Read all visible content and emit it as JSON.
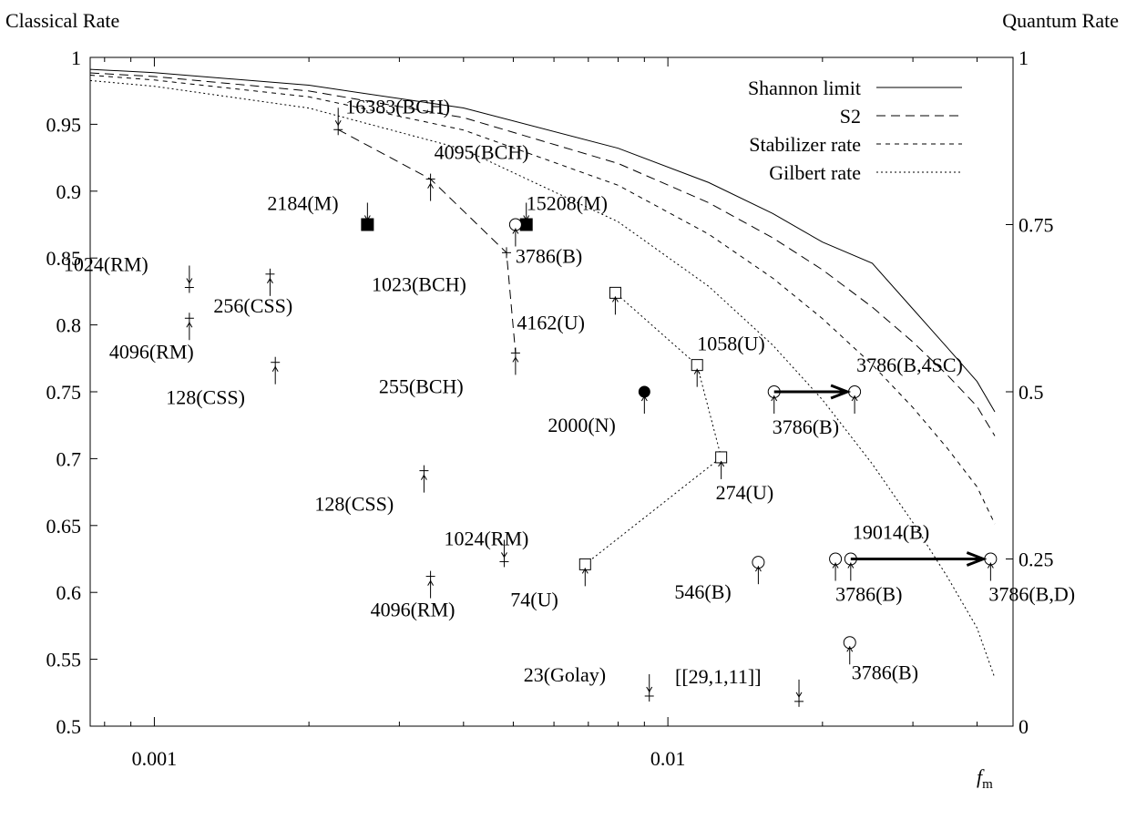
{
  "chart_data": {
    "type": "scatter",
    "y_left_label": "Classical Rate",
    "y_right_label": "Quantum Rate",
    "x_label_main": "f",
    "x_label_sub": "m",
    "x_scale": "log",
    "xlim": [
      0.00075,
      0.047
    ],
    "ylim": [
      0.5,
      1.0
    ],
    "x_tick_labels": [
      {
        "x": 0.001,
        "label": "0.001"
      },
      {
        "x": 0.01,
        "label": "0.01"
      }
    ],
    "y_left_ticks": [
      {
        "y": 0.5,
        "label": "0.5"
      },
      {
        "y": 0.55,
        "label": "0.55"
      },
      {
        "y": 0.6,
        "label": "0.6"
      },
      {
        "y": 0.65,
        "label": "0.65"
      },
      {
        "y": 0.7,
        "label": "0.7"
      },
      {
        "y": 0.75,
        "label": "0.75"
      },
      {
        "y": 0.8,
        "label": "0.8"
      },
      {
        "y": 0.85,
        "label": "0.85"
      },
      {
        "y": 0.9,
        "label": "0.9"
      },
      {
        "y": 0.95,
        "label": "0.95"
      },
      {
        "y": 1.0,
        "label": "1"
      }
    ],
    "y_right_ticks": [
      {
        "y": 0.5,
        "label": "0"
      },
      {
        "y": 0.625,
        "label": "0.25"
      },
      {
        "y": 0.75,
        "label": "0.5"
      },
      {
        "y": 0.875,
        "label": "0.75"
      },
      {
        "y": 1.0,
        "label": "1"
      }
    ],
    "grid": false,
    "legend_position": "top-right",
    "series": [
      {
        "name": "Shannon limit",
        "style": "solid",
        "kind": "curve",
        "x": [
          0.00075,
          0.001,
          0.002,
          0.004,
          0.008,
          0.012,
          0.016,
          0.02,
          0.025,
          0.03,
          0.035,
          0.04,
          0.045
        ],
        "y": [
          0.9911,
          0.9886,
          0.9792,
          0.9622,
          0.9321,
          0.9065,
          0.8833,
          0.8619,
          0.8461,
          0.8119,
          0.783,
          0.7577,
          0.735
        ]
      },
      {
        "name": "S2",
        "style": "dashed",
        "kind": "curve",
        "x": [
          0.00075,
          0.001,
          0.002,
          0.004,
          0.008,
          0.012,
          0.016,
          0.02,
          0.025,
          0.03,
          0.035,
          0.04,
          0.045
        ],
        "y": [
          0.9884,
          0.9857,
          0.9749,
          0.955,
          0.9207,
          0.8914,
          0.8651,
          0.8412,
          0.8133,
          0.7872,
          0.7626,
          0.739,
          0.717
        ]
      },
      {
        "name": "Stabilizer rate",
        "style": "short-dash",
        "kind": "curve",
        "x": [
          0.00075,
          0.001,
          0.002,
          0.004,
          0.008,
          0.012,
          0.016,
          0.02,
          0.025,
          0.03,
          0.035,
          0.04,
          0.045
        ],
        "y": [
          0.9867,
          0.9831,
          0.9705,
          0.9457,
          0.9044,
          0.8679,
          0.835,
          0.8047,
          0.7703,
          0.7382,
          0.7078,
          0.6789,
          0.6512
        ]
      },
      {
        "name": "Gilbert rate",
        "style": "dotted",
        "kind": "curve",
        "x": [
          0.00075,
          0.001,
          0.002,
          0.004,
          0.008,
          0.012,
          0.016,
          0.02,
          0.025,
          0.03,
          0.035,
          0.04,
          0.045
        ],
        "y": [
          0.9827,
          0.9784,
          0.9621,
          0.9313,
          0.8771,
          0.8289,
          0.7849,
          0.744,
          0.6961,
          0.6522,
          0.6117,
          0.5734,
          0.536
        ]
      },
      {
        "name": "BCH path",
        "style": "dashed",
        "kind": "path",
        "x": [
          0.00228,
          0.00345,
          0.00485,
          0.00505
        ],
        "y": [
          0.946,
          0.909,
          0.854,
          0.779
        ]
      },
      {
        "name": "U path",
        "style": "dotted",
        "kind": "path",
        "x": [
          0.0069,
          0.0127,
          0.0114,
          0.0079
        ],
        "y": [
          0.621,
          0.701,
          0.77,
          0.824
        ]
      }
    ],
    "points": [
      {
        "label": "16383(BCH)",
        "x": 0.00228,
        "y": 0.946,
        "marker": "plus",
        "arrow": "down"
      },
      {
        "label": "4095(BCH)",
        "x": 0.00345,
        "y": 0.909,
        "marker": "plus",
        "arrow": "up"
      },
      {
        "label": "1023(BCH)",
        "x": 0.00485,
        "y": 0.854,
        "marker": "plus",
        "arrow": "none"
      },
      {
        "label": "255(BCH)",
        "x": 0.00505,
        "y": 0.779,
        "marker": "plus",
        "arrow": "up"
      },
      {
        "label": "2184(M)",
        "x": 0.0026,
        "y": 0.875,
        "marker": "filled-square",
        "arrow": "down"
      },
      {
        "label": "15208(M)",
        "x": 0.0053,
        "y": 0.875,
        "marker": "filled-square",
        "arrow": "down"
      },
      {
        "label": "3786(B)",
        "x": 0.00505,
        "y": 0.875,
        "marker": "circle",
        "arrow": "up"
      },
      {
        "label": "1024(RM)",
        "x": 0.00117,
        "y": 0.828,
        "marker": "plus",
        "arrow": "down"
      },
      {
        "label": "256(CSS)",
        "x": 0.00168,
        "y": 0.838,
        "marker": "plus",
        "arrow": "up"
      },
      {
        "label": "4096(RM)",
        "x": 0.00117,
        "y": 0.805,
        "marker": "plus",
        "arrow": "up"
      },
      {
        "label": "128(CSS)",
        "x": 0.00172,
        "y": 0.772,
        "marker": "plus",
        "arrow": "up"
      },
      {
        "label": "4162(U)",
        "x": 0.0079,
        "y": 0.824,
        "marker": "square",
        "arrow": "up"
      },
      {
        "label": "1058(U)",
        "x": 0.0114,
        "y": 0.77,
        "marker": "square",
        "arrow": "up"
      },
      {
        "label": "2000(N)",
        "x": 0.009,
        "y": 0.75,
        "marker": "filled-circle",
        "arrow": "up"
      },
      {
        "label": "274(U)",
        "x": 0.0127,
        "y": 0.701,
        "marker": "square",
        "arrow": "up"
      },
      {
        "label": "74(U)",
        "x": 0.0069,
        "y": 0.621,
        "marker": "square",
        "arrow": "up"
      },
      {
        "label": "128(CSS)",
        "x": 0.00335,
        "y": 0.691,
        "marker": "plus",
        "arrow": "up"
      },
      {
        "label": "1024(RM)",
        "x": 0.0048,
        "y": 0.623,
        "marker": "plus",
        "arrow": "down"
      },
      {
        "label": "4096(RM)",
        "x": 0.00345,
        "y": 0.612,
        "marker": "plus",
        "arrow": "up"
      },
      {
        "label": "3786(B,4SC)",
        "x": 0.0231,
        "y": 0.75,
        "marker": "circle",
        "arrow": "up"
      },
      {
        "label": "3786(B)",
        "x": 0.0161,
        "y": 0.75,
        "marker": "circle",
        "arrow": "up"
      },
      {
        "label": "546(B)",
        "x": 0.015,
        "y": 0.6225,
        "marker": "circle",
        "arrow": "up"
      },
      {
        "label": "19014(B)",
        "x": 0.0227,
        "y": 0.625,
        "marker": "circle",
        "arrow": "up"
      },
      {
        "label": "3786(B)",
        "x": 0.0212,
        "y": 0.625,
        "marker": "circle",
        "arrow": "up"
      },
      {
        "label": "3786(B,D)",
        "x": 0.0425,
        "y": 0.625,
        "marker": "circle",
        "arrow": "up"
      },
      {
        "label": "3786(B)",
        "x": 0.0226,
        "y": 0.5625,
        "marker": "circle",
        "arrow": "up"
      },
      {
        "label": "23(Golay)",
        "x": 0.0092,
        "y": 0.5225,
        "marker": "plus",
        "arrow": "down"
      },
      {
        "label": "[[29,1,11]]",
        "x": 0.018,
        "y": 0.5185,
        "marker": "plus",
        "arrow": "down"
      }
    ],
    "arrows": [
      {
        "from": {
          "x": 0.0161,
          "y": 0.75
        },
        "to": {
          "x": 0.0231,
          "y": 0.75
        }
      },
      {
        "from": {
          "x": 0.0227,
          "y": 0.625
        },
        "to": {
          "x": 0.0425,
          "y": 0.625
        }
      }
    ]
  }
}
